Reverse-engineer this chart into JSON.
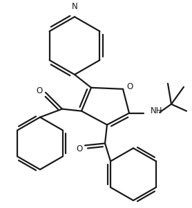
{
  "bg_color": "#ffffff",
  "line_color": "#1a1a1a",
  "line_width": 1.6,
  "fig_width": 2.78,
  "fig_height": 3.01,
  "dpi": 100,
  "xlim": [
    0,
    278
  ],
  "ylim": [
    0,
    301
  ]
}
